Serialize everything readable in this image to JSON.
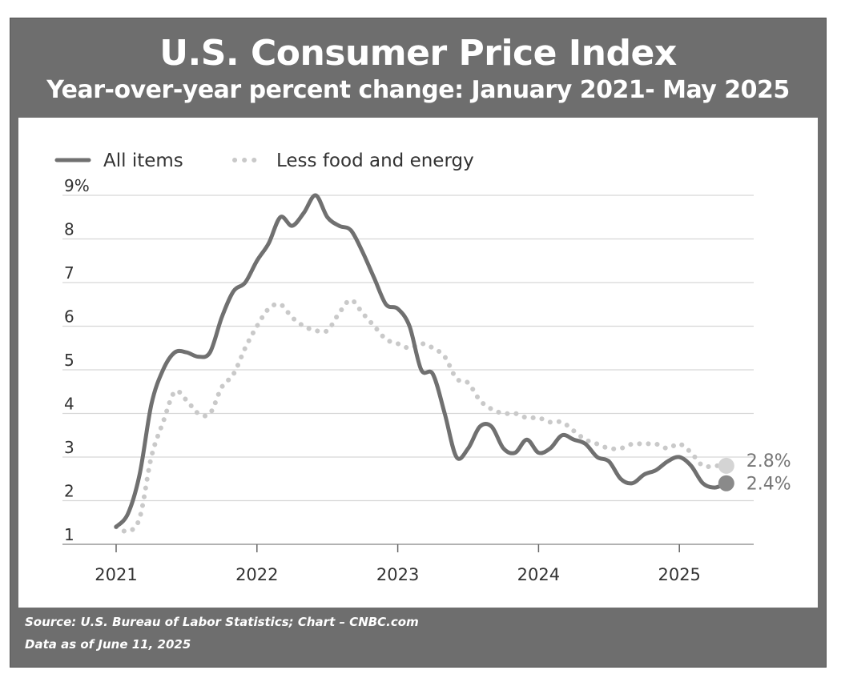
{
  "title": "U.S. Consumer Price Index",
  "subtitle": "Year-over-year percent change: January 2021- May 2025",
  "source": "Source: U.S. Bureau of Labor Statistics; Chart – CNBC.com",
  "data_as_of": "Data as of June 11, 2025",
  "colors": {
    "all_items": "#707070",
    "core": "#c9c9c9",
    "grid": "#d6d6d6",
    "text": "#333333"
  },
  "chart_data": {
    "type": "line",
    "title": "U.S. Consumer Price Index",
    "subtitle": "Year-over-year percent change: January 2021- May 2025",
    "xlabel": "",
    "ylabel": "",
    "ylim": [
      1,
      9
    ],
    "xlim": [
      "2021-01",
      "2025-05"
    ],
    "y_ticks": [
      "1",
      "2",
      "3",
      "4",
      "5",
      "6",
      "7",
      "8",
      "9%"
    ],
    "x_ticks": [
      "2021",
      "2022",
      "2023",
      "2024",
      "2025"
    ],
    "grid": true,
    "legend_position": "top-left",
    "x": [
      "2021-01",
      "2021-02",
      "2021-03",
      "2021-04",
      "2021-05",
      "2021-06",
      "2021-07",
      "2021-08",
      "2021-09",
      "2021-10",
      "2021-11",
      "2021-12",
      "2022-01",
      "2022-02",
      "2022-03",
      "2022-04",
      "2022-05",
      "2022-06",
      "2022-07",
      "2022-08",
      "2022-09",
      "2022-10",
      "2022-11",
      "2022-12",
      "2023-01",
      "2023-02",
      "2023-03",
      "2023-04",
      "2023-05",
      "2023-06",
      "2023-07",
      "2023-08",
      "2023-09",
      "2023-10",
      "2023-11",
      "2023-12",
      "2024-01",
      "2024-02",
      "2024-03",
      "2024-04",
      "2024-05",
      "2024-06",
      "2024-07",
      "2024-08",
      "2024-09",
      "2024-10",
      "2024-11",
      "2024-12",
      "2025-01",
      "2025-02",
      "2025-03",
      "2025-04",
      "2025-05"
    ],
    "series": [
      {
        "name": "All items",
        "style": "solid",
        "values": [
          1.4,
          1.7,
          2.6,
          4.2,
          5.0,
          5.4,
          5.4,
          5.3,
          5.4,
          6.2,
          6.8,
          7.0,
          7.5,
          7.9,
          8.5,
          8.3,
          8.6,
          9.0,
          8.5,
          8.3,
          8.2,
          7.7,
          7.1,
          6.5,
          6.4,
          6.0,
          5.0,
          4.9,
          4.0,
          3.0,
          3.2,
          3.7,
          3.7,
          3.2,
          3.1,
          3.4,
          3.1,
          3.2,
          3.5,
          3.4,
          3.3,
          3.0,
          2.9,
          2.5,
          2.4,
          2.6,
          2.7,
          2.9,
          3.0,
          2.8,
          2.4,
          2.3,
          2.4
        ]
      },
      {
        "name": "Less food and energy",
        "style": "dotted",
        "values": [
          1.4,
          1.3,
          1.6,
          3.0,
          3.8,
          4.5,
          4.3,
          4.0,
          4.0,
          4.6,
          4.9,
          5.5,
          6.0,
          6.4,
          6.5,
          6.2,
          6.0,
          5.9,
          5.9,
          6.3,
          6.6,
          6.3,
          6.0,
          5.7,
          5.6,
          5.5,
          5.6,
          5.5,
          5.3,
          4.8,
          4.7,
          4.3,
          4.1,
          4.0,
          4.0,
          3.9,
          3.9,
          3.8,
          3.8,
          3.6,
          3.4,
          3.3,
          3.2,
          3.2,
          3.3,
          3.3,
          3.3,
          3.2,
          3.3,
          3.1,
          2.8,
          2.8,
          2.8
        ]
      }
    ],
    "end_labels": [
      "2.8%",
      "2.4%"
    ]
  }
}
